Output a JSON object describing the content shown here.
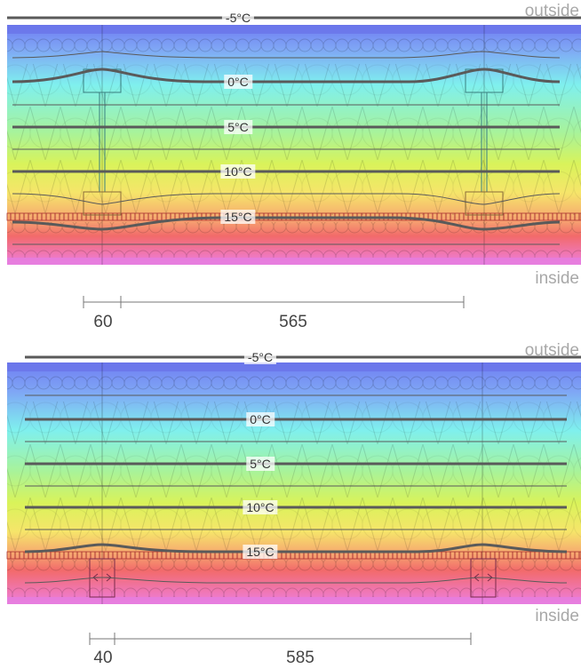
{
  "panels": [
    {
      "outside_label": "outside",
      "inside_label": "inside",
      "isotherms": [
        "-5°C",
        "0°C",
        "5°C",
        "10°C",
        "15°C"
      ],
      "dimensions": [
        "60",
        "565"
      ]
    },
    {
      "outside_label": "outside",
      "inside_label": "inside",
      "isotherms": [
        "-5°C",
        "0°C",
        "5°C",
        "10°C",
        "15°C"
      ],
      "dimensions": [
        "40",
        "585"
      ]
    }
  ],
  "colors": {
    "gradient_outside": "#6f7df2",
    "gradient_cold": "#7ff0ee",
    "gradient_mid": "#b9f35a",
    "gradient_warm": "#f6e56a",
    "gradient_hot": "#f26a6a",
    "gradient_inside": "#ee7ee0",
    "isotherm_line": "#5a5a5a"
  }
}
